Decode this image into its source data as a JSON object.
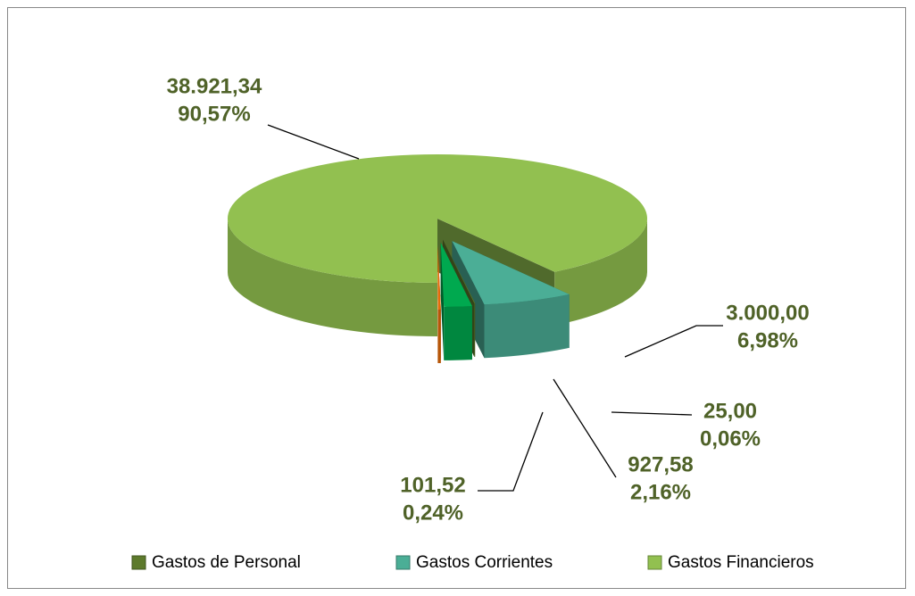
{
  "chart_data": {
    "type": "pie3d",
    "values": [
      38921.34,
      3000.0,
      25.0,
      927.58,
      101.52
    ],
    "value_labels": [
      "38.921,34",
      "3.000,00",
      "25,00",
      "927,58",
      "101,52"
    ],
    "percents": [
      90.57,
      6.98,
      0.06,
      2.16,
      0.24
    ],
    "percent_labels": [
      "90,57%",
      "6,98%",
      "0,06%",
      "2,16%",
      "0,24%"
    ],
    "colors": [
      "#92c050",
      "#4bae96",
      "#5d7a2c",
      "#00a94f",
      "#e46c0a"
    ],
    "legend": [
      {
        "name": "Gastos de Personal",
        "color": "#5d7a2c"
      },
      {
        "name": "Gastos Corrientes",
        "color": "#4bae96"
      },
      {
        "name": "Gastos Financieros",
        "color": "#92c050"
      }
    ]
  }
}
